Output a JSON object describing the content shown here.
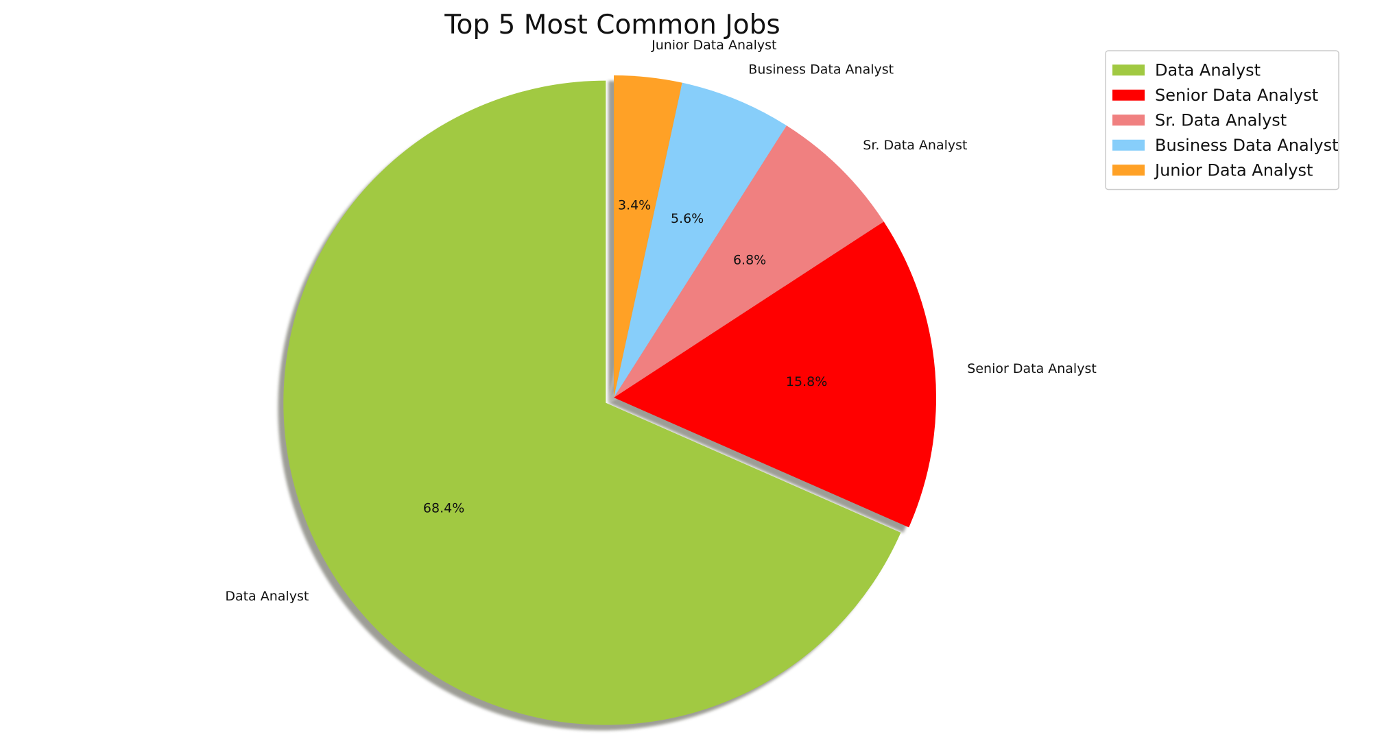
{
  "chart_data": {
    "type": "pie",
    "title": "Top 5 Most Common Jobs",
    "slices": [
      {
        "label": "Data Analyst",
        "value": 68.4,
        "pct_label": "68.4%",
        "color": "#a1c942"
      },
      {
        "label": "Senior Data Analyst",
        "value": 15.8,
        "pct_label": "15.8%",
        "color": "#ff0000"
      },
      {
        "label": "Sr. Data Analyst",
        "value": 6.8,
        "pct_label": "6.8%",
        "color": "#f08080"
      },
      {
        "label": "Business Data Analyst",
        "value": 5.6,
        "pct_label": "5.6%",
        "color": "#87cefa"
      },
      {
        "label": "Junior Data Analyst",
        "value": 3.4,
        "pct_label": "3.4%",
        "color": "#ffa126"
      }
    ],
    "start_angle_deg": 90,
    "counterclockwise": true,
    "exploded": "Data Analyst",
    "shadow": true,
    "legend": {
      "position": "top-right",
      "entries": [
        "Data Analyst",
        "Senior Data Analyst",
        "Sr. Data Analyst",
        "Business Data Analyst",
        "Junior Data Analyst"
      ]
    }
  }
}
